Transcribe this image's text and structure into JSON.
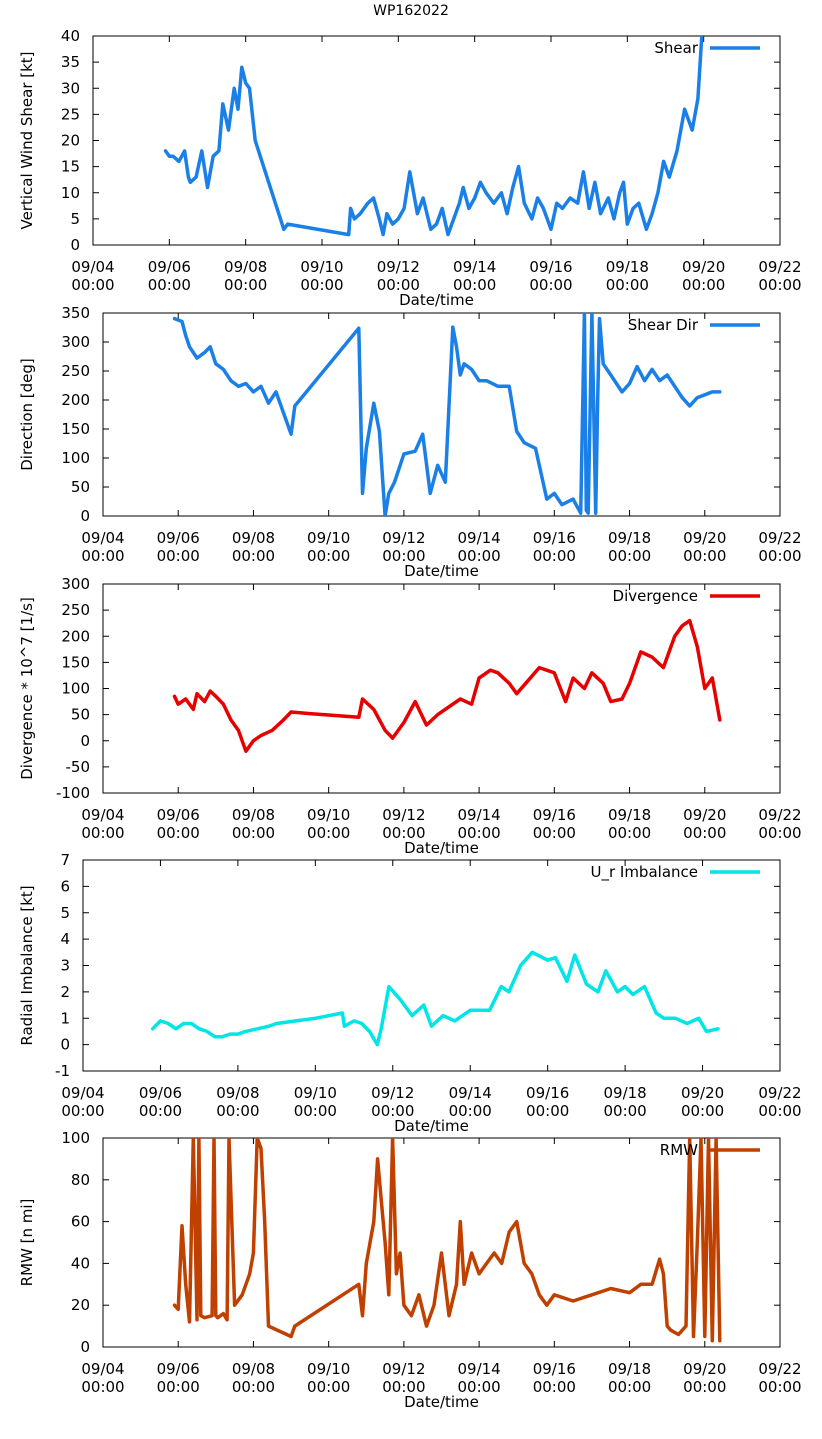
{
  "title": "WP162022",
  "chart_data": [
    {
      "type": "line",
      "ylabel": "Vertical Wind Shear [kt]",
      "xlabel": "Date/time",
      "ylim": [
        0,
        40
      ],
      "yticks": [
        "0",
        "5",
        "10",
        "15",
        "20",
        "25",
        "30",
        "35",
        "40"
      ],
      "xlim": [
        4,
        22
      ],
      "xticks": [
        {
          "date": "09/04",
          "time": "00:00"
        },
        {
          "date": "09/06",
          "time": "00:00"
        },
        {
          "date": "09/08",
          "time": "00:00"
        },
        {
          "date": "09/10",
          "time": "00:00"
        },
        {
          "date": "09/12",
          "time": "00:00"
        },
        {
          "date": "09/14",
          "time": "00:00"
        },
        {
          "date": "09/16",
          "time": "00:00"
        },
        {
          "date": "09/18",
          "time": "00:00"
        },
        {
          "date": "09/20",
          "time": "00:00"
        },
        {
          "date": "09/22",
          "time": "00:00"
        }
      ],
      "series": [
        {
          "name": "Shear",
          "color": "#1a7fe6",
          "x": [
            5.9,
            6.0,
            6.1,
            6.25,
            6.4,
            6.5,
            6.55,
            6.7,
            6.85,
            7.0,
            7.15,
            7.3,
            7.4,
            7.55,
            7.7,
            7.8,
            7.9,
            8.0,
            8.1,
            8.25,
            9.0,
            9.1,
            10.7,
            10.75,
            10.85,
            11.0,
            11.2,
            11.35,
            11.5,
            11.6,
            11.7,
            11.85,
            12.0,
            12.15,
            12.3,
            12.5,
            12.65,
            12.85,
            13.0,
            13.15,
            13.3,
            13.45,
            13.6,
            13.7,
            13.85,
            14.0,
            14.15,
            14.3,
            14.5,
            14.7,
            14.85,
            15.0,
            15.15,
            15.3,
            15.5,
            15.65,
            15.8,
            16.0,
            16.15,
            16.3,
            16.5,
            16.7,
            16.85,
            17.0,
            17.15,
            17.3,
            17.5,
            17.65,
            17.8,
            17.9,
            18.0,
            18.15,
            18.3,
            18.5,
            18.65,
            18.8,
            18.95,
            19.1,
            19.3,
            19.5,
            19.7,
            19.85,
            19.95
          ],
          "values": [
            18,
            17,
            17,
            16,
            18,
            13,
            12,
            13,
            18,
            11,
            17,
            18,
            27,
            22,
            30,
            26,
            34,
            31,
            30,
            20,
            3,
            4,
            2,
            7,
            5,
            6,
            8,
            9,
            5,
            2,
            6,
            4,
            5,
            7,
            14,
            6,
            9,
            3,
            4,
            7,
            2,
            5,
            8,
            11,
            7,
            9,
            12,
            10,
            8,
            10,
            6,
            11,
            15,
            8,
            5,
            9,
            7,
            3,
            8,
            7,
            9,
            8,
            14,
            7,
            12,
            6,
            9,
            5,
            10,
            12,
            4,
            7,
            8,
            3,
            6,
            10,
            16,
            13,
            18,
            26,
            22,
            28,
            40
          ]
        }
      ]
    },
    {
      "type": "line",
      "ylabel": "Direction [deg]",
      "xlabel": "Date/time",
      "ylim": [
        0,
        360
      ],
      "yticks": [
        "0",
        "50",
        "100",
        "150",
        "200",
        "250",
        "300",
        "350"
      ],
      "xlim": [
        4,
        22
      ],
      "xticks": [
        {
          "date": "09/04",
          "time": "00:00"
        },
        {
          "date": "09/06",
          "time": "00:00"
        },
        {
          "date": "09/08",
          "time": "00:00"
        },
        {
          "date": "09/10",
          "time": "00:00"
        },
        {
          "date": "09/12",
          "time": "00:00"
        },
        {
          "date": "09/14",
          "time": "00:00"
        },
        {
          "date": "09/16",
          "time": "00:00"
        },
        {
          "date": "09/18",
          "time": "00:00"
        },
        {
          "date": "09/20",
          "time": "00:00"
        },
        {
          "date": "09/22",
          "time": "00:00"
        }
      ],
      "series": [
        {
          "name": "Shear Dir",
          "color": "#1a7fe6",
          "x": [
            5.9,
            6.1,
            6.2,
            6.3,
            6.5,
            6.7,
            6.85,
            7.0,
            7.2,
            7.4,
            7.6,
            7.8,
            8.0,
            8.2,
            8.4,
            8.6,
            9.0,
            9.1,
            10.8,
            10.9,
            11.0,
            11.2,
            11.35,
            11.5,
            11.6,
            11.75,
            12.0,
            12.3,
            12.5,
            12.7,
            12.9,
            13.1,
            13.3,
            13.4,
            13.5,
            13.6,
            13.8,
            14.0,
            14.2,
            14.5,
            14.8,
            15.0,
            15.2,
            15.5,
            15.8,
            16.0,
            16.2,
            16.5,
            16.7,
            16.8,
            16.85,
            16.9,
            17.0,
            17.1,
            17.15,
            17.2,
            17.3,
            17.5,
            17.8,
            18.0,
            18.2,
            18.4,
            18.6,
            18.8,
            19.0,
            19.2,
            19.4,
            19.6,
            19.8,
            20.0,
            20.2,
            20.4
          ],
          "values": [
            350,
            345,
            320,
            300,
            280,
            290,
            300,
            270,
            260,
            240,
            230,
            235,
            220,
            230,
            200,
            220,
            145,
            195,
            333,
            40,
            120,
            200,
            150,
            0,
            40,
            60,
            110,
            115,
            145,
            40,
            90,
            60,
            335,
            300,
            250,
            270,
            260,
            240,
            240,
            230,
            230,
            150,
            130,
            120,
            30,
            40,
            20,
            30,
            5,
            360,
            10,
            5,
            360,
            5,
            200,
            350,
            270,
            250,
            220,
            235,
            265,
            240,
            260,
            240,
            250,
            230,
            210,
            195,
            210,
            215,
            220,
            220
          ]
        }
      ]
    },
    {
      "type": "line",
      "ylabel": "Divergence * 10^7 [1/s]",
      "xlabel": "Date/time",
      "ylim": [
        -100,
        300
      ],
      "yticks": [
        "-100",
        "-50",
        "0",
        "50",
        "100",
        "150",
        "200",
        "250",
        "300"
      ],
      "xlim": [
        4,
        22
      ],
      "xticks": [
        {
          "date": "09/04",
          "time": "00:00"
        },
        {
          "date": "09/06",
          "time": "00:00"
        },
        {
          "date": "09/08",
          "time": "00:00"
        },
        {
          "date": "09/10",
          "time": "00:00"
        },
        {
          "date": "09/12",
          "time": "00:00"
        },
        {
          "date": "09/14",
          "time": "00:00"
        },
        {
          "date": "09/16",
          "time": "00:00"
        },
        {
          "date": "09/18",
          "time": "00:00"
        },
        {
          "date": "09/20",
          "time": "00:00"
        },
        {
          "date": "09/22",
          "time": "00:00"
        }
      ],
      "series": [
        {
          "name": "Divergence",
          "color": "#e60000",
          "x": [
            5.9,
            6.0,
            6.2,
            6.4,
            6.5,
            6.7,
            6.85,
            7.0,
            7.2,
            7.4,
            7.6,
            7.8,
            8.0,
            8.2,
            8.5,
            8.8,
            9.0,
            9.5,
            10.8,
            10.9,
            11.2,
            11.5,
            11.7,
            12.0,
            12.3,
            12.6,
            12.9,
            13.2,
            13.5,
            13.8,
            14.0,
            14.3,
            14.5,
            14.8,
            15.0,
            15.3,
            15.6,
            16.0,
            16.3,
            16.5,
            16.8,
            17.0,
            17.3,
            17.5,
            17.8,
            18.0,
            18.3,
            18.6,
            18.9,
            19.2,
            19.4,
            19.6,
            19.8,
            20.0,
            20.2,
            20.4
          ],
          "values": [
            85,
            70,
            80,
            60,
            90,
            75,
            95,
            85,
            70,
            40,
            20,
            -20,
            0,
            10,
            20,
            40,
            55,
            52,
            45,
            80,
            60,
            20,
            5,
            35,
            75,
            30,
            50,
            65,
            80,
            70,
            120,
            135,
            130,
            110,
            90,
            115,
            140,
            130,
            75,
            120,
            100,
            130,
            110,
            75,
            80,
            110,
            170,
            160,
            140,
            200,
            220,
            230,
            180,
            100,
            120,
            40
          ]
        }
      ]
    },
    {
      "type": "line",
      "ylabel": "Radial Imbalance [kt]",
      "xlabel": "Date/time",
      "ylim": [
        -1,
        7
      ],
      "yticks": [
        "-1",
        "0",
        "1",
        "2",
        "3",
        "4",
        "5",
        "6",
        "7"
      ],
      "xlim": [
        4,
        22
      ],
      "xticks": [
        {
          "date": "09/04",
          "time": "00:00"
        },
        {
          "date": "09/06",
          "time": "00:00"
        },
        {
          "date": "09/08",
          "time": "00:00"
        },
        {
          "date": "09/10",
          "time": "00:00"
        },
        {
          "date": "09/12",
          "time": "00:00"
        },
        {
          "date": "09/14",
          "time": "00:00"
        },
        {
          "date": "09/16",
          "time": "00:00"
        },
        {
          "date": "09/18",
          "time": "00:00"
        },
        {
          "date": "09/20",
          "time": "00:00"
        },
        {
          "date": "09/22",
          "time": "00:00"
        }
      ],
      "series": [
        {
          "name": "U_r Imbalance",
          "color": "#00e5e5",
          "x": [
            5.8,
            6.0,
            6.2,
            6.4,
            6.6,
            6.8,
            7.0,
            7.2,
            7.4,
            7.6,
            7.8,
            8.0,
            8.2,
            8.5,
            8.8,
            9.0,
            9.5,
            10.0,
            10.7,
            10.75,
            11.0,
            11.2,
            11.4,
            11.6,
            11.7,
            11.9,
            12.2,
            12.5,
            12.8,
            13.0,
            13.3,
            13.6,
            14.0,
            14.2,
            14.5,
            14.8,
            15.0,
            15.3,
            15.6,
            16.0,
            16.2,
            16.5,
            16.7,
            17.0,
            17.3,
            17.5,
            17.8,
            18.0,
            18.2,
            18.5,
            18.8,
            19.0,
            19.3,
            19.6,
            19.9,
            20.1,
            20.4
          ],
          "values": [
            0.6,
            0.9,
            0.8,
            0.6,
            0.8,
            0.8,
            0.6,
            0.5,
            0.3,
            0.3,
            0.4,
            0.4,
            0.5,
            0.6,
            0.7,
            0.8,
            0.9,
            1.0,
            1.2,
            0.7,
            0.9,
            0.8,
            0.5,
            0.0,
            0.6,
            2.2,
            1.7,
            1.1,
            1.5,
            0.7,
            1.1,
            0.9,
            1.3,
            1.3,
            1.3,
            2.2,
            2.0,
            3.0,
            3.5,
            3.2,
            3.3,
            2.4,
            3.4,
            2.3,
            2.0,
            2.8,
            2.0,
            2.2,
            1.9,
            2.2,
            1.2,
            1.0,
            1.0,
            0.8,
            1.0,
            0.5,
            0.6
          ]
        }
      ]
    },
    {
      "type": "line",
      "ylabel": "RMW [n mi]",
      "xlabel": "Date/time",
      "ylim": [
        0,
        100
      ],
      "yticks": [
        "0",
        "20",
        "40",
        "60",
        "80",
        "100"
      ],
      "xlim": [
        4,
        22
      ],
      "xticks": [
        {
          "date": "09/04",
          "time": "00:00"
        },
        {
          "date": "09/06",
          "time": "00:00"
        },
        {
          "date": "09/08",
          "time": "00:00"
        },
        {
          "date": "09/10",
          "time": "00:00"
        },
        {
          "date": "09/12",
          "time": "00:00"
        },
        {
          "date": "09/14",
          "time": "00:00"
        },
        {
          "date": "09/16",
          "time": "00:00"
        },
        {
          "date": "09/18",
          "time": "00:00"
        },
        {
          "date": "09/20",
          "time": "00:00"
        },
        {
          "date": "09/22",
          "time": "00:00"
        }
      ],
      "series": [
        {
          "name": "RMW",
          "color": "#c04000",
          "x": [
            5.9,
            6.0,
            6.1,
            6.2,
            6.3,
            6.4,
            6.5,
            6.55,
            6.6,
            6.7,
            6.9,
            6.95,
            7.0,
            7.05,
            7.2,
            7.3,
            7.35,
            7.5,
            7.7,
            7.9,
            8.0,
            8.1,
            8.2,
            8.3,
            8.4,
            9.0,
            9.1,
            10.8,
            10.9,
            11.0,
            11.2,
            11.3,
            11.4,
            11.5,
            11.6,
            11.7,
            11.8,
            11.9,
            12.0,
            12.2,
            12.4,
            12.6,
            12.8,
            13.0,
            13.2,
            13.4,
            13.5,
            13.6,
            13.8,
            14.0,
            14.2,
            14.4,
            14.6,
            14.8,
            15.0,
            15.2,
            15.4,
            15.6,
            15.8,
            16.0,
            16.5,
            17.0,
            17.5,
            18.0,
            18.3,
            18.6,
            18.8,
            18.9,
            19.0,
            19.1,
            19.3,
            19.5,
            19.6,
            19.7,
            19.8,
            19.9,
            20.0,
            20.1,
            20.2,
            20.3,
            20.4
          ],
          "values": [
            20,
            18,
            58,
            30,
            12,
            100,
            13,
            100,
            15,
            14,
            15,
            100,
            15,
            14,
            16,
            13,
            100,
            20,
            25,
            35,
            45,
            100,
            95,
            60,
            10,
            5,
            10,
            30,
            15,
            40,
            60,
            90,
            70,
            50,
            25,
            100,
            35,
            45,
            20,
            15,
            25,
            10,
            20,
            45,
            15,
            30,
            60,
            30,
            45,
            35,
            40,
            45,
            40,
            55,
            60,
            40,
            35,
            25,
            20,
            25,
            22,
            25,
            28,
            26,
            30,
            30,
            42,
            35,
            10,
            8,
            6,
            10,
            100,
            5,
            50,
            100,
            5,
            100,
            3,
            100,
            3
          ]
        }
      ]
    }
  ]
}
